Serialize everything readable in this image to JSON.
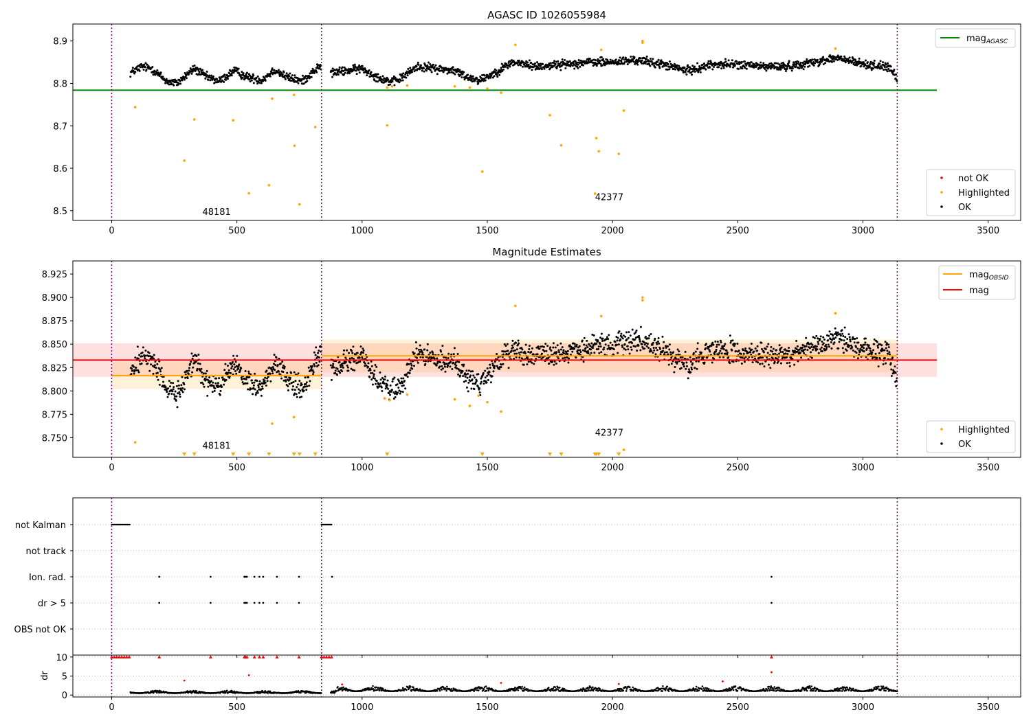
{
  "chart_data": [
    {
      "type": "scatter",
      "title": "AGASC ID 1026055984",
      "xlim": [
        -155,
        3630
      ],
      "ylim": [
        8.477,
        8.94
      ],
      "x_ticks": [
        0,
        500,
        1000,
        1500,
        2000,
        2500,
        3000,
        3500
      ],
      "y_ticks": [
        8.5,
        8.6,
        8.7,
        8.8,
        8.9
      ],
      "y_tick_labels": [
        "8.5",
        "8.6",
        "8.7",
        "8.8",
        "8.9"
      ],
      "obs_boundaries": [
        0,
        838,
        3137
      ],
      "obs_labels": [
        {
          "text": "48181",
          "x": 419,
          "y": 8.49
        },
        {
          "text": "42377",
          "x": 1987,
          "y": 8.525
        }
      ],
      "lines": [
        {
          "name": "mag",
          "sub": "AGASC",
          "color": "#008000",
          "value": 8.784,
          "x_range": [
            -155,
            3295
          ]
        }
      ],
      "series": [
        {
          "name": "not OK",
          "color": "#ff0000",
          "style": "dot"
        },
        {
          "name": "Highlighted",
          "color": "#ffa500",
          "style": "dot"
        },
        {
          "name": "OK",
          "color": "#000000",
          "style": "dot"
        }
      ],
      "legend_lines_position": "top-right",
      "legend_points_position": "bottom-right",
      "grid": false,
      "ok_trend": [
        [
          75,
          8.825
        ],
        [
          120,
          8.84
        ],
        [
          160,
          8.835
        ],
        [
          220,
          8.805
        ],
        [
          260,
          8.8
        ],
        [
          330,
          8.835
        ],
        [
          380,
          8.815
        ],
        [
          430,
          8.805
        ],
        [
          490,
          8.83
        ],
        [
          540,
          8.815
        ],
        [
          600,
          8.808
        ],
        [
          650,
          8.832
        ],
        [
          700,
          8.815
        ],
        [
          760,
          8.805
        ],
        [
          830,
          8.84
        ],
        [
          880,
          8.825
        ],
        [
          1000,
          8.835
        ],
        [
          1060,
          8.815
        ],
        [
          1120,
          8.803
        ],
        [
          1150,
          8.81
        ],
        [
          1220,
          8.84
        ],
        [
          1300,
          8.835
        ],
        [
          1370,
          8.83
        ],
        [
          1420,
          8.815
        ],
        [
          1470,
          8.808
        ],
        [
          1530,
          8.825
        ],
        [
          1600,
          8.85
        ],
        [
          1700,
          8.84
        ],
        [
          1800,
          8.845
        ],
        [
          1900,
          8.85
        ],
        [
          2000,
          8.85
        ],
        [
          2100,
          8.855
        ],
        [
          2200,
          8.845
        ],
        [
          2300,
          8.83
        ],
        [
          2400,
          8.845
        ],
        [
          2500,
          8.845
        ],
        [
          2600,
          8.84
        ],
        [
          2700,
          8.84
        ],
        [
          2800,
          8.85
        ],
        [
          2900,
          8.86
        ],
        [
          3000,
          8.845
        ],
        [
          3100,
          8.84
        ],
        [
          3137,
          8.81
        ]
      ],
      "highlighted_points": [
        [
          94,
          8.744
        ],
        [
          290,
          8.618
        ],
        [
          330,
          8.715
        ],
        [
          485,
          8.713
        ],
        [
          548,
          8.541
        ],
        [
          628,
          8.56
        ],
        [
          641,
          8.764
        ],
        [
          728,
          8.773
        ],
        [
          730,
          8.653
        ],
        [
          750,
          8.515
        ],
        [
          813,
          8.697
        ],
        [
          1100,
          8.701
        ],
        [
          1100,
          8.79
        ],
        [
          1120,
          8.793
        ],
        [
          1180,
          8.795
        ],
        [
          1370,
          8.793
        ],
        [
          1430,
          8.79
        ],
        [
          1480,
          8.592
        ],
        [
          1500,
          8.788
        ],
        [
          1555,
          8.778
        ],
        [
          1612,
          8.891
        ],
        [
          1750,
          8.725
        ],
        [
          1795,
          8.654
        ],
        [
          1930,
          8.54
        ],
        [
          1935,
          8.671
        ],
        [
          1945,
          8.64
        ],
        [
          1955,
          8.879
        ],
        [
          2025,
          8.634
        ],
        [
          2045,
          8.736
        ],
        [
          2120,
          8.9
        ],
        [
          2120,
          8.896
        ],
        [
          2890,
          8.882
        ]
      ],
      "not_ok_points": []
    },
    {
      "type": "scatter",
      "title": "Magnitude Estimates",
      "xlim": [
        -155,
        3630
      ],
      "ylim": [
        8.729,
        8.939
      ],
      "x_ticks": [
        0,
        500,
        1000,
        1500,
        2000,
        2500,
        3000,
        3500
      ],
      "y_ticks": [
        8.75,
        8.775,
        8.8,
        8.825,
        8.85,
        8.875,
        8.9,
        8.925
      ],
      "y_tick_labels": [
        "8.750",
        "8.775",
        "8.800",
        "8.825",
        "8.850",
        "8.875",
        "8.900",
        "8.925"
      ],
      "obs_boundaries": [
        0,
        838,
        3137
      ],
      "obs_labels": [
        {
          "text": "48181",
          "x": 419,
          "y": 8.738
        },
        {
          "text": "42377",
          "x": 1987,
          "y": 8.752
        }
      ],
      "lines": [
        {
          "name": "mag",
          "sub": "OBSID",
          "color": "#ffa500",
          "segments": [
            {
              "x_range": [
                0,
                838
              ],
              "value": 8.8165
            },
            {
              "x_range": [
                838,
                3137
              ],
              "value": 8.8375
            }
          ]
        },
        {
          "name": "mag",
          "sub": "",
          "color": "#ff0000",
          "value": 8.833,
          "x_range": [
            -155,
            3295
          ]
        }
      ],
      "bands": [
        {
          "color": "#ff0000",
          "opacity": 0.12,
          "x_range": [
            -155,
            3295
          ],
          "y_range": [
            8.815,
            8.851
          ]
        },
        {
          "color": "#ffa500",
          "opacity": 0.15,
          "x_range": [
            0,
            838
          ],
          "y_range": [
            8.802,
            8.831
          ]
        },
        {
          "color": "#ffa500",
          "opacity": 0.15,
          "x_range": [
            838,
            3137
          ],
          "y_range": [
            8.82,
            8.855
          ]
        }
      ],
      "series": [
        {
          "name": "Highlighted",
          "color": "#ffa500",
          "style": "dot"
        },
        {
          "name": "OK",
          "color": "#000000",
          "style": "dot"
        }
      ],
      "legend_lines_position": "top-right",
      "legend_points_position": "bottom-right",
      "grid": false,
      "ok_trend": [
        [
          75,
          8.82
        ],
        [
          120,
          8.838
        ],
        [
          160,
          8.832
        ],
        [
          220,
          8.805
        ],
        [
          260,
          8.795
        ],
        [
          330,
          8.835
        ],
        [
          380,
          8.81
        ],
        [
          430,
          8.805
        ],
        [
          490,
          8.83
        ],
        [
          540,
          8.81
        ],
        [
          600,
          8.805
        ],
        [
          650,
          8.832
        ],
        [
          700,
          8.812
        ],
        [
          760,
          8.802
        ],
        [
          830,
          8.84
        ],
        [
          880,
          8.825
        ],
        [
          1000,
          8.835
        ],
        [
          1060,
          8.81
        ],
        [
          1120,
          8.8
        ],
        [
          1150,
          8.805
        ],
        [
          1220,
          8.84
        ],
        [
          1300,
          8.835
        ],
        [
          1370,
          8.83
        ],
        [
          1420,
          8.812
        ],
        [
          1470,
          8.805
        ],
        [
          1530,
          8.825
        ],
        [
          1600,
          8.845
        ],
        [
          1700,
          8.838
        ],
        [
          1800,
          8.84
        ],
        [
          1900,
          8.848
        ],
        [
          2000,
          8.85
        ],
        [
          2100,
          8.855
        ],
        [
          2200,
          8.842
        ],
        [
          2300,
          8.828
        ],
        [
          2400,
          8.843
        ],
        [
          2500,
          8.843
        ],
        [
          2600,
          8.838
        ],
        [
          2700,
          8.838
        ],
        [
          2800,
          8.848
        ],
        [
          2900,
          8.858
        ],
        [
          3000,
          8.845
        ],
        [
          3100,
          8.84
        ],
        [
          3137,
          8.808
        ]
      ],
      "highlighted_points": [
        [
          94,
          8.745
        ],
        [
          641,
          8.765
        ],
        [
          728,
          8.772
        ],
        [
          1090,
          8.792
        ],
        [
          1110,
          8.79
        ],
        [
          1180,
          8.796
        ],
        [
          1370,
          8.791
        ],
        [
          1430,
          8.784
        ],
        [
          1465,
          8.795
        ],
        [
          1500,
          8.788
        ],
        [
          1555,
          8.778
        ],
        [
          1612,
          8.891
        ],
        [
          1955,
          8.88
        ],
        [
          2045,
          8.737
        ],
        [
          2120,
          8.9
        ],
        [
          2120,
          8.897
        ],
        [
          2890,
          8.883
        ]
      ],
      "below_range_markers": [
        290,
        330,
        485,
        548,
        628,
        728,
        750,
        813,
        1100,
        1480,
        1750,
        1795,
        1930,
        1935,
        1945,
        2025
      ]
    },
    {
      "type": "scatter",
      "title": "",
      "xlim": [
        -155,
        3630
      ],
      "x_ticks": [
        0,
        500,
        1000,
        1500,
        2000,
        2500,
        3000,
        3500
      ],
      "flag_rows": [
        "not Kalman",
        "not track",
        "Ion. rad.",
        "dr > 5",
        "OBS not OK"
      ],
      "obs_boundaries": [
        0,
        838,
        3137
      ],
      "flag_points": {
        "not Kalman": [
          [
            0,
            75
          ],
          [
            838,
            880
          ]
        ],
        "not track": [],
        "Ion. rad.": [
          190,
          395,
          530,
          535,
          540,
          570,
          590,
          605,
          660,
          748,
          880,
          2635
        ],
        "dr > 5": [
          190,
          395,
          530,
          535,
          540,
          570,
          590,
          605,
          660,
          748,
          2635
        ],
        "OBS not OK": []
      },
      "grid": true
    },
    {
      "type": "scatter",
      "title": "",
      "ylabel": "dr",
      "xlim": [
        -155,
        3630
      ],
      "ylim": [
        -0.5,
        10.5
      ],
      "x_ticks": [
        0,
        500,
        1000,
        1500,
        2000,
        2500,
        3000,
        3500
      ],
      "y_ticks": [
        0,
        5,
        10
      ],
      "y_tick_labels": [
        "0",
        "5",
        "10"
      ],
      "obs_boundaries": [
        0,
        838,
        3137
      ],
      "clipped_markers_x": [
        0,
        10,
        20,
        30,
        40,
        50,
        60,
        70,
        190,
        395,
        530,
        535,
        540,
        570,
        590,
        605,
        660,
        748,
        838,
        848,
        858,
        868,
        878,
        2635
      ],
      "red_points": [
        [
          290,
          3.8
        ],
        [
          548,
          5.2
        ],
        [
          920,
          2.8
        ],
        [
          1555,
          3.2
        ],
        [
          2025,
          2.9
        ],
        [
          2440,
          3.6
        ],
        [
          2635,
          6.0
        ]
      ],
      "ok_range": [
        [
          75,
          838
        ],
        [
          875,
          3137
        ]
      ],
      "grid": true
    }
  ]
}
